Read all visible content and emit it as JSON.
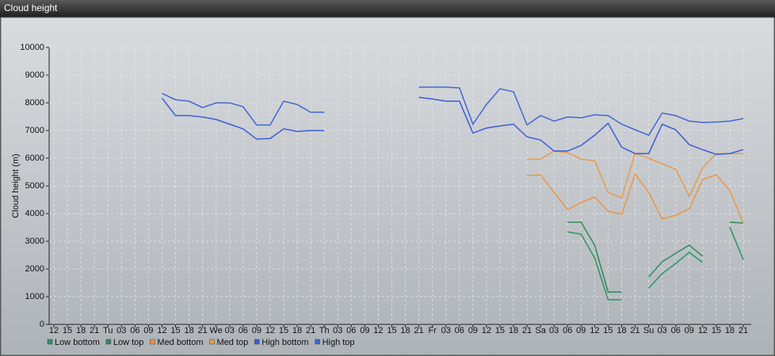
{
  "chart_data": {
    "type": "line",
    "title": "Cloud height",
    "y_label": "Cloud height (m)",
    "categories": [
      "12",
      "15",
      "18",
      "21",
      "Tu",
      "03",
      "06",
      "09",
      "12",
      "15",
      "18",
      "21",
      "We",
      "03",
      "06",
      "09",
      "12",
      "15",
      "18",
      "21",
      "Th",
      "03",
      "06",
      "09",
      "12",
      "15",
      "18",
      "21",
      "Fr",
      "03",
      "06",
      "09",
      "12",
      "15",
      "18",
      "21",
      "Sa",
      "03",
      "06",
      "09",
      "12",
      "15",
      "18",
      "21",
      "Su",
      "03",
      "06",
      "09",
      "12",
      "15",
      "18",
      "21"
    ],
    "ylim": [
      0,
      10000
    ],
    "yticks": [
      0,
      1000,
      2000,
      3000,
      4000,
      5000,
      6000,
      7000,
      8000,
      9000,
      10000
    ],
    "grid": true,
    "series": [
      {
        "name": "Low bottom",
        "color": "#2a9660",
        "values": [
          null,
          null,
          null,
          null,
          null,
          null,
          null,
          null,
          null,
          null,
          null,
          null,
          null,
          null,
          null,
          null,
          null,
          null,
          null,
          null,
          null,
          null,
          null,
          null,
          null,
          null,
          null,
          null,
          null,
          null,
          null,
          null,
          null,
          null,
          null,
          null,
          null,
          null,
          3340,
          3260,
          2400,
          890,
          890,
          null,
          1310,
          1830,
          2200,
          2600,
          2230,
          null,
          3510,
          2340
        ]
      },
      {
        "name": "Low top",
        "color": "#2f8a5a",
        "values": [
          null,
          null,
          null,
          null,
          null,
          null,
          null,
          null,
          null,
          null,
          null,
          null,
          null,
          null,
          null,
          null,
          null,
          null,
          null,
          null,
          null,
          null,
          null,
          null,
          null,
          null,
          null,
          null,
          null,
          null,
          null,
          null,
          null,
          null,
          null,
          null,
          null,
          null,
          3690,
          3690,
          2860,
          1170,
          1170,
          null,
          1710,
          2260,
          2570,
          2860,
          2460,
          null,
          3690,
          3660
        ]
      },
      {
        "name": "Med bottom",
        "color": "#ec9640",
        "values": [
          null,
          null,
          null,
          null,
          null,
          null,
          null,
          null,
          null,
          null,
          null,
          null,
          null,
          null,
          null,
          null,
          null,
          null,
          null,
          null,
          null,
          null,
          null,
          null,
          null,
          null,
          null,
          null,
          null,
          null,
          null,
          null,
          null,
          null,
          null,
          5370,
          5400,
          4770,
          4140,
          4400,
          4600,
          4090,
          3970,
          5430,
          4770,
          3800,
          3940,
          4170,
          5230,
          5400,
          4830,
          3660
        ]
      },
      {
        "name": "Med top",
        "color": "#e89a4c",
        "values": [
          null,
          null,
          null,
          null,
          null,
          null,
          null,
          null,
          null,
          null,
          null,
          null,
          null,
          null,
          null,
          null,
          null,
          null,
          null,
          null,
          null,
          null,
          null,
          null,
          null,
          null,
          null,
          null,
          null,
          null,
          null,
          null,
          null,
          null,
          null,
          5970,
          5970,
          6260,
          6200,
          5970,
          5910,
          4770,
          4570,
          6170,
          6000,
          5800,
          5600,
          4630,
          5660,
          6170,
          6170,
          6170
        ]
      },
      {
        "name": "High bottom",
        "color": "#3a5ed6",
        "values": [
          null,
          null,
          null,
          null,
          null,
          null,
          null,
          null,
          8170,
          7540,
          7540,
          7490,
          7400,
          7230,
          7060,
          6690,
          6710,
          7060,
          6970,
          7000,
          7000,
          null,
          null,
          null,
          null,
          null,
          null,
          8200,
          8140,
          8060,
          8060,
          6910,
          7090,
          7170,
          7230,
          6770,
          6660,
          6260,
          6260,
          6460,
          6830,
          7260,
          6400,
          6170,
          6170,
          7230,
          7030,
          6490,
          6310,
          6140,
          6170,
          6310
        ]
      },
      {
        "name": "High top",
        "color": "#4466d4",
        "values": [
          null,
          null,
          null,
          null,
          null,
          null,
          null,
          null,
          8340,
          8110,
          8060,
          7830,
          8000,
          8000,
          7860,
          7200,
          7200,
          8060,
          7940,
          7660,
          7660,
          null,
          null,
          null,
          null,
          null,
          null,
          8570,
          8570,
          8570,
          8540,
          7230,
          7940,
          8510,
          8400,
          7200,
          7540,
          7340,
          7490,
          7460,
          7570,
          7540,
          7230,
          7030,
          6830,
          7630,
          7540,
          7340,
          7290,
          7310,
          7340,
          7430
        ]
      }
    ]
  }
}
